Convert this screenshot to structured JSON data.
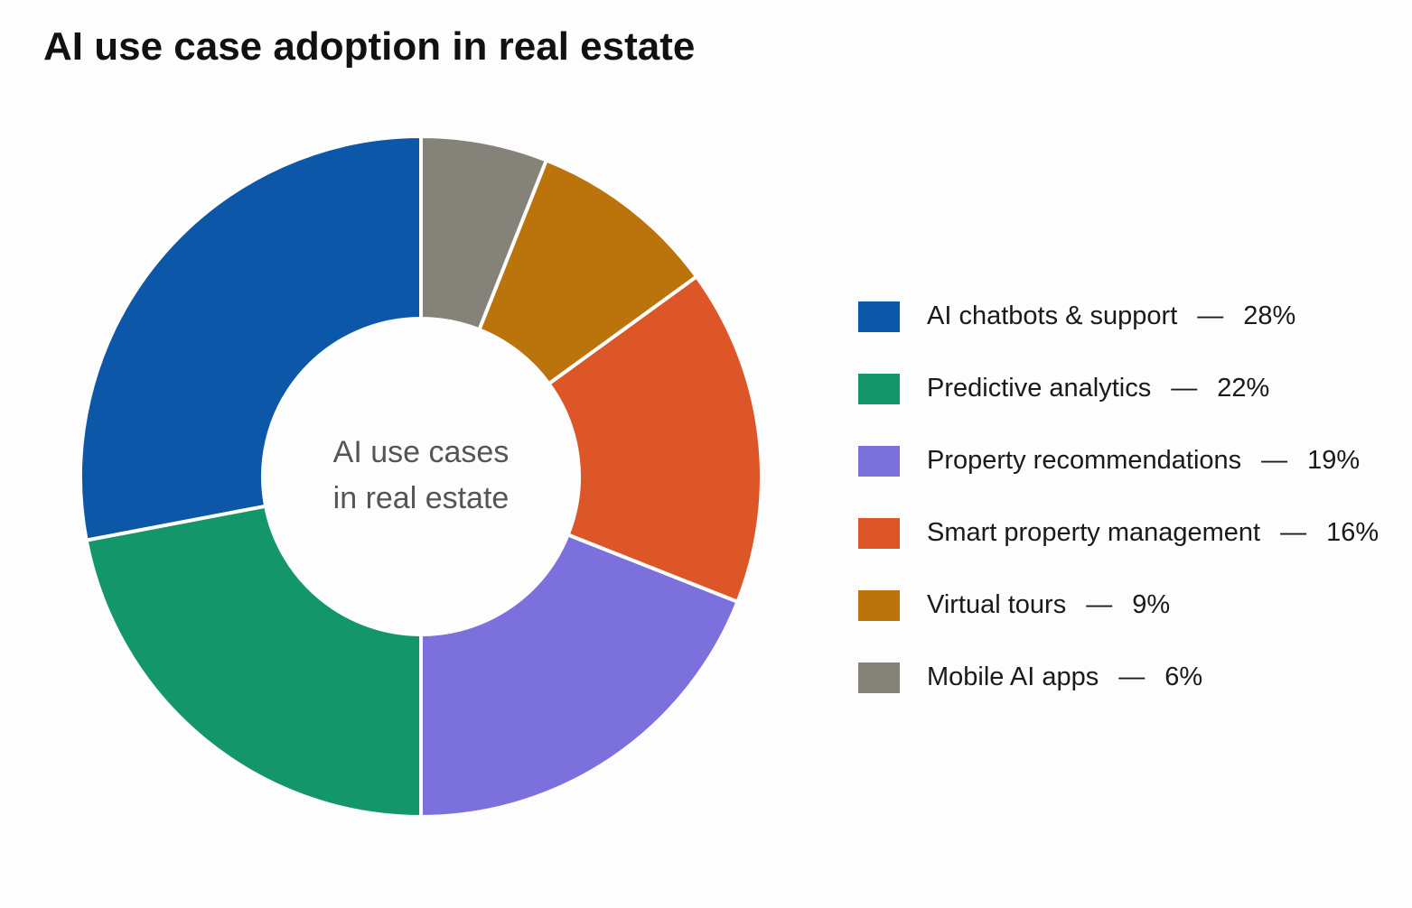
{
  "chart_data": {
    "type": "donut",
    "title": "AI use case adoption in real estate",
    "center_label": [
      "AI use cases",
      "in real estate"
    ],
    "categories": [
      "AI chatbots & support",
      "Predictive analytics",
      "Property recommendations",
      "Smart property management",
      "Virtual tours",
      "Mobile AI apps"
    ],
    "values": [
      28,
      22,
      19,
      16,
      9,
      6
    ],
    "value_labels": [
      "28%",
      "22%",
      "19%",
      "16%",
      "9%",
      "6%"
    ],
    "colors": [
      "#0d57a8",
      "#12966a",
      "#7b70dc",
      "#dc5628",
      "#bb740b",
      "#85827a"
    ],
    "legend_separator": "—",
    "legend": "right"
  }
}
